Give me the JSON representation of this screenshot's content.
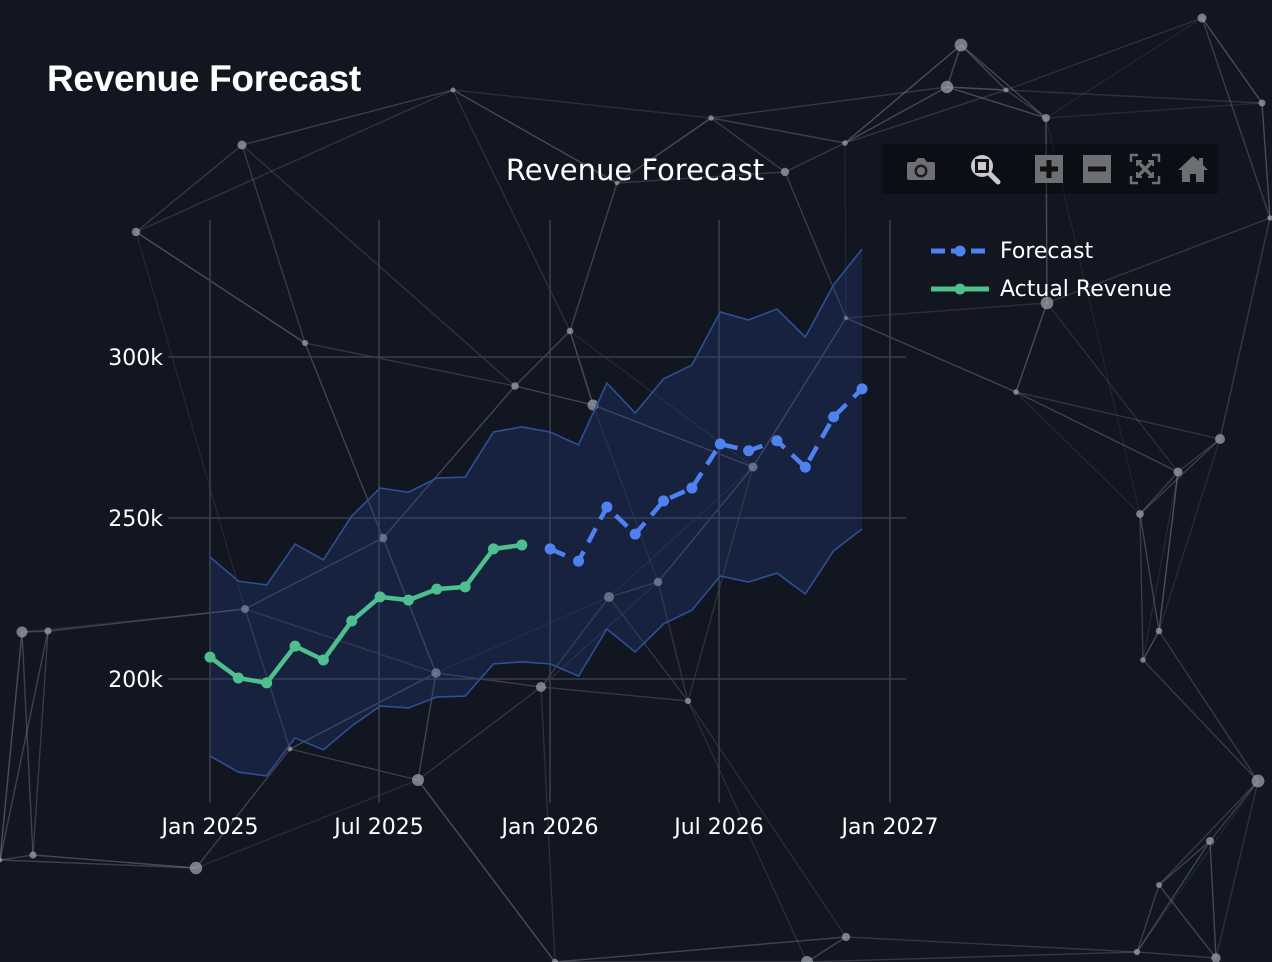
{
  "page": {
    "title": "Revenue Forecast"
  },
  "chart": {
    "title": "Revenue Forecast",
    "legend": [
      {
        "label": "Forecast",
        "color": "#4f82f0",
        "dash": true
      },
      {
        "label": "Actual Revenue",
        "color": "#4fbf8f",
        "dash": false
      }
    ],
    "y_ticks": [
      "300k",
      "250k",
      "200k"
    ],
    "x_ticks": [
      "Jan 2025",
      "Jul 2025",
      "Jan 2026",
      "Jul 2026",
      "Jan 2027"
    ],
    "modebar": [
      {
        "name": "camera-icon",
        "title": "Download plot as png"
      },
      {
        "name": "zoom-icon",
        "title": "Zoom"
      },
      {
        "name": "zoom-in-icon",
        "title": "Zoom in"
      },
      {
        "name": "zoom-out-icon",
        "title": "Zoom out"
      },
      {
        "name": "autoscale-icon",
        "title": "Autoscale"
      },
      {
        "name": "home-icon",
        "title": "Reset axes"
      }
    ]
  },
  "colors": {
    "background": "#111620",
    "actual": "#4fbf8f",
    "forecast": "#4f82f0",
    "band_fill": "rgba(40,70,140,0.28)",
    "band_line": "#2e4f96",
    "grid": "#3a3f4b"
  },
  "chart_data": {
    "type": "line",
    "title": "Revenue Forecast",
    "xlabel": "",
    "ylabel": "",
    "ylim": [
      165000,
      340000
    ],
    "grid": true,
    "legend_position": "top-right",
    "x_tick_labels": [
      "Jan 2025",
      "Jul 2025",
      "Jan 2026",
      "Jul 2026",
      "Jan 2027"
    ],
    "y_tick_labels": [
      "200k",
      "250k",
      "300k"
    ],
    "series": [
      {
        "name": "Actual Revenue",
        "style": "solid line + markers",
        "x": [
          "2025-01",
          "2025-02",
          "2025-03",
          "2025-04",
          "2025-05",
          "2025-06",
          "2025-07",
          "2025-08",
          "2025-09",
          "2025-10",
          "2025-11",
          "2025-12"
        ],
        "values": [
          206800,
          200300,
          198800,
          210200,
          205900,
          218000,
          225500,
          224500,
          227900,
          228600,
          240400,
          241600
        ]
      },
      {
        "name": "Forecast",
        "style": "dashed line + markers",
        "x": [
          "2026-01",
          "2026-02",
          "2026-03",
          "2026-04",
          "2026-05",
          "2026-06",
          "2026-07",
          "2026-08",
          "2026-09",
          "2026-10",
          "2026-11",
          "2026-12"
        ],
        "values": [
          240400,
          236600,
          253400,
          245000,
          255300,
          259300,
          273000,
          270900,
          274000,
          265800,
          281400,
          290100
        ]
      },
      {
        "name": "Confidence Band Upper",
        "style": "band (no legend)",
        "x": [
          "2025-01",
          "2025-02",
          "2025-03",
          "2025-04",
          "2025-05",
          "2025-06",
          "2025-07",
          "2025-08",
          "2025-09",
          "2025-10",
          "2025-11",
          "2025-12",
          "2026-01",
          "2026-02",
          "2026-03",
          "2026-04",
          "2026-05",
          "2026-06",
          "2026-07",
          "2026-08",
          "2026-09",
          "2026-10",
          "2026-11",
          "2026-12"
        ],
        "values": [
          237900,
          230400,
          229200,
          241900,
          237000,
          250600,
          259300,
          258000,
          262400,
          262700,
          276700,
          278300,
          276700,
          272700,
          291900,
          282600,
          293200,
          297500,
          314000,
          311500,
          314900,
          306200,
          322400,
          333500
        ]
      },
      {
        "name": "Confidence Band Lower",
        "style": "band (no legend)",
        "x": [
          "2025-01",
          "2025-02",
          "2025-03",
          "2025-04",
          "2025-05",
          "2025-06",
          "2025-07",
          "2025-08",
          "2025-09",
          "2025-10",
          "2025-11",
          "2025-12",
          "2026-01",
          "2026-02",
          "2026-03",
          "2026-04",
          "2026-05",
          "2026-06",
          "2026-07",
          "2026-08",
          "2026-09",
          "2026-10",
          "2026-11",
          "2026-12"
        ],
        "values": [
          176100,
          171100,
          169900,
          181700,
          178000,
          185400,
          191600,
          191000,
          194400,
          194700,
          204700,
          205300,
          204700,
          200900,
          215500,
          208400,
          217100,
          221400,
          232000,
          230100,
          232900,
          226400,
          239800,
          246600
        ]
      }
    ]
  }
}
